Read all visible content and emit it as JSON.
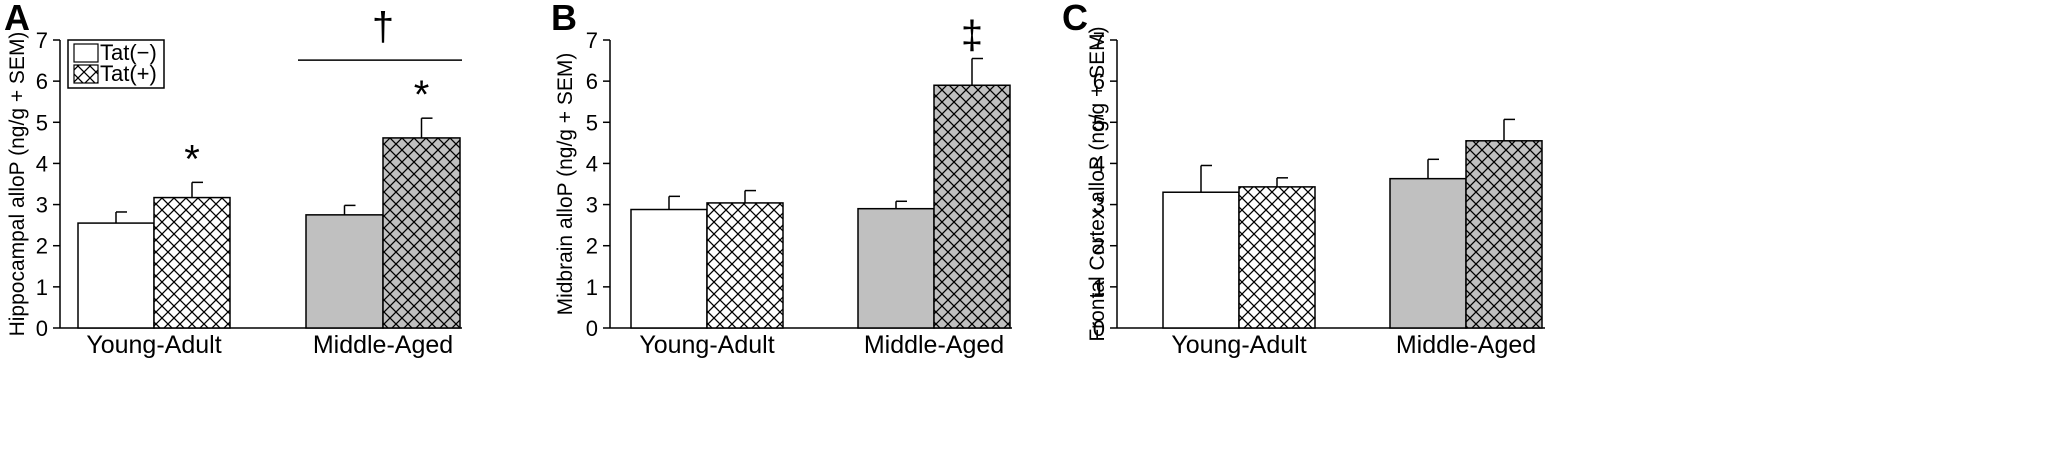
{
  "legend": {
    "items": [
      {
        "label": "Tat(−)",
        "pattern": "open"
      },
      {
        "label": "Tat(+)",
        "pattern": "crosshatch"
      }
    ]
  },
  "chart_data": [
    {
      "type": "bar",
      "panel": "A",
      "ylabel": "Hippocampal alloP (ng/g + SEM)",
      "ylim": [
        0,
        7
      ],
      "yticks": [
        "0",
        "1",
        "2",
        "3",
        "4",
        "5",
        "6",
        "7"
      ],
      "categories": [
        "Young-Adult",
        "Middle-Aged"
      ],
      "series": [
        {
          "name": "Tat(−)",
          "values": [
            2.55,
            2.75
          ],
          "errors": [
            0.27,
            0.23
          ]
        },
        {
          "name": "Tat(+)",
          "values": [
            3.17,
            4.62
          ],
          "errors": [
            0.37,
            0.48
          ]
        }
      ],
      "annotations": [
        {
          "text": "*",
          "target": "Young-Adult Tat(+)"
        },
        {
          "text": "*",
          "target": "Middle-Aged Tat(+)"
        },
        {
          "text": "†",
          "target": "Middle-Aged",
          "bracket": true
        }
      ]
    },
    {
      "type": "bar",
      "panel": "B",
      "ylabel": "Midbrain alloP (ng/g + SEM)",
      "ylim": [
        0,
        7
      ],
      "yticks": [
        "0",
        "1",
        "2",
        "3",
        "4",
        "5",
        "6",
        "7"
      ],
      "categories": [
        "Young-Adult",
        "Middle-Aged"
      ],
      "series": [
        {
          "name": "Tat(−)",
          "values": [
            2.88,
            2.9
          ],
          "errors": [
            0.32,
            0.18
          ]
        },
        {
          "name": "Tat(+)",
          "values": [
            3.04,
            5.9
          ],
          "errors": [
            0.3,
            0.65
          ]
        }
      ],
      "annotations": [
        {
          "text": "‡",
          "target": "Middle-Aged Tat(+)"
        }
      ]
    },
    {
      "type": "bar",
      "panel": "C",
      "ylabel": "Frontal Cortex  alloP (ng/g + SEM)",
      "ylim": [
        0,
        7
      ],
      "yticks": [
        "0",
        "1",
        "2",
        "3",
        "4",
        "5",
        "6",
        "7"
      ],
      "categories": [
        "Young-Adult",
        "Middle-Aged"
      ],
      "series": [
        {
          "name": "Tat(−)",
          "values": [
            3.3,
            3.63
          ],
          "errors": [
            0.65,
            0.47
          ]
        },
        {
          "name": "Tat(+)",
          "values": [
            3.43,
            4.55
          ],
          "errors": [
            0.22,
            0.52
          ]
        }
      ],
      "annotations": []
    }
  ],
  "colors": {
    "young_fill": "#ffffff",
    "middle_fill": "#c0c0c0",
    "stroke": "#000000"
  }
}
